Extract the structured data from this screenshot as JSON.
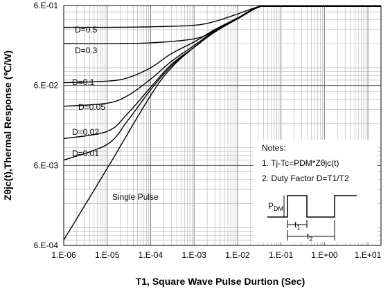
{
  "chart_data": {
    "type": "line",
    "title": "",
    "xlabel": "T1,  Square Wave Pulse Durtion (Sec)",
    "ylabel": "Zθjc(t),Thermal Response (℃/W)",
    "xscale": "log",
    "yscale": "log",
    "xlim": [
      1e-06,
      20
    ],
    "ylim": [
      0.0006,
      0.6
    ],
    "x_ticks": [
      1e-06,
      1e-05,
      0.0001,
      0.001,
      0.01,
      0.1,
      1,
      10
    ],
    "x_tick_labels": [
      "1.E-06",
      "1.E-05",
      "1.E-04",
      "1.E-03",
      "1.E-02",
      "1.E-01",
      "1.E+00",
      "1.E+01"
    ],
    "y_ticks": [
      0.0006,
      0.006,
      0.06,
      0.6
    ],
    "y_tick_labels": [
      "6.E-04",
      "6.E-03",
      "6.E-02",
      "6.E-01"
    ],
    "grid": true,
    "series": [
      {
        "name": "D=0.5",
        "x": [
          1e-06,
          1e-05,
          0.0001,
          0.001,
          0.003,
          0.01,
          0.03,
          0.1,
          1,
          20
        ],
        "y": [
          0.32,
          0.32,
          0.325,
          0.34,
          0.38,
          0.47,
          0.58,
          0.67,
          0.67,
          0.67
        ]
      },
      {
        "name": "D=0.3",
        "x": [
          1e-06,
          1e-05,
          0.0001,
          0.001,
          0.003,
          0.01,
          0.03,
          0.1,
          1,
          20
        ],
        "y": [
          0.2,
          0.2,
          0.205,
          0.23,
          0.29,
          0.41,
          0.57,
          0.67,
          0.67,
          0.67
        ]
      },
      {
        "name": "D=0.1",
        "x": [
          1e-06,
          1e-05,
          3e-05,
          0.0001,
          0.0003,
          0.001,
          0.003,
          0.01,
          0.03,
          0.1,
          1,
          20
        ],
        "y": [
          0.065,
          0.068,
          0.075,
          0.1,
          0.15,
          0.21,
          0.3,
          0.42,
          0.58,
          0.67,
          0.67,
          0.67
        ]
      },
      {
        "name": "D=0.05",
        "x": [
          1e-06,
          1e-05,
          3e-05,
          0.0001,
          0.0003,
          0.001,
          0.003,
          0.01,
          0.03,
          0.1,
          1,
          20
        ],
        "y": [
          0.033,
          0.036,
          0.045,
          0.072,
          0.12,
          0.19,
          0.29,
          0.41,
          0.57,
          0.67,
          0.67,
          0.67
        ]
      },
      {
        "name": "D=0.02",
        "x": [
          1e-06,
          1e-05,
          3e-05,
          0.0001,
          0.0003,
          0.001,
          0.003,
          0.01,
          0.03,
          0.1,
          1,
          20
        ],
        "y": [
          0.013,
          0.016,
          0.027,
          0.057,
          0.11,
          0.18,
          0.28,
          0.41,
          0.57,
          0.67,
          0.67,
          0.67
        ]
      },
      {
        "name": "D=0.01",
        "x": [
          1e-06,
          1e-05,
          3e-05,
          0.0001,
          0.0003,
          0.001,
          0.003,
          0.01,
          0.03,
          0.1,
          1,
          20
        ],
        "y": [
          0.007,
          0.011,
          0.022,
          0.053,
          0.105,
          0.18,
          0.28,
          0.41,
          0.57,
          0.67,
          0.67,
          0.67
        ]
      },
      {
        "name": "Single Pulse",
        "x": [
          1e-06,
          1e-05,
          0.0001,
          0.0003,
          0.001,
          0.003,
          0.01,
          0.03,
          0.1,
          1,
          20
        ],
        "y": [
          0.0007,
          0.0055,
          0.045,
          0.1,
          0.18,
          0.28,
          0.41,
          0.57,
          0.67,
          0.67,
          0.67
        ]
      }
    ],
    "annotations": {
      "notes_title": "Notes:",
      "note_1": "1. Tj-Tc=PDM*Zθjc(t)",
      "note_2": "2. Duty Factor D=T1/T2",
      "pdm_label_main": "P",
      "pdm_label_sub": "DM",
      "t1_label_main": "t",
      "t1_label_sub": "1",
      "t2_label_main": "t",
      "t2_label_sub": "2"
    }
  }
}
